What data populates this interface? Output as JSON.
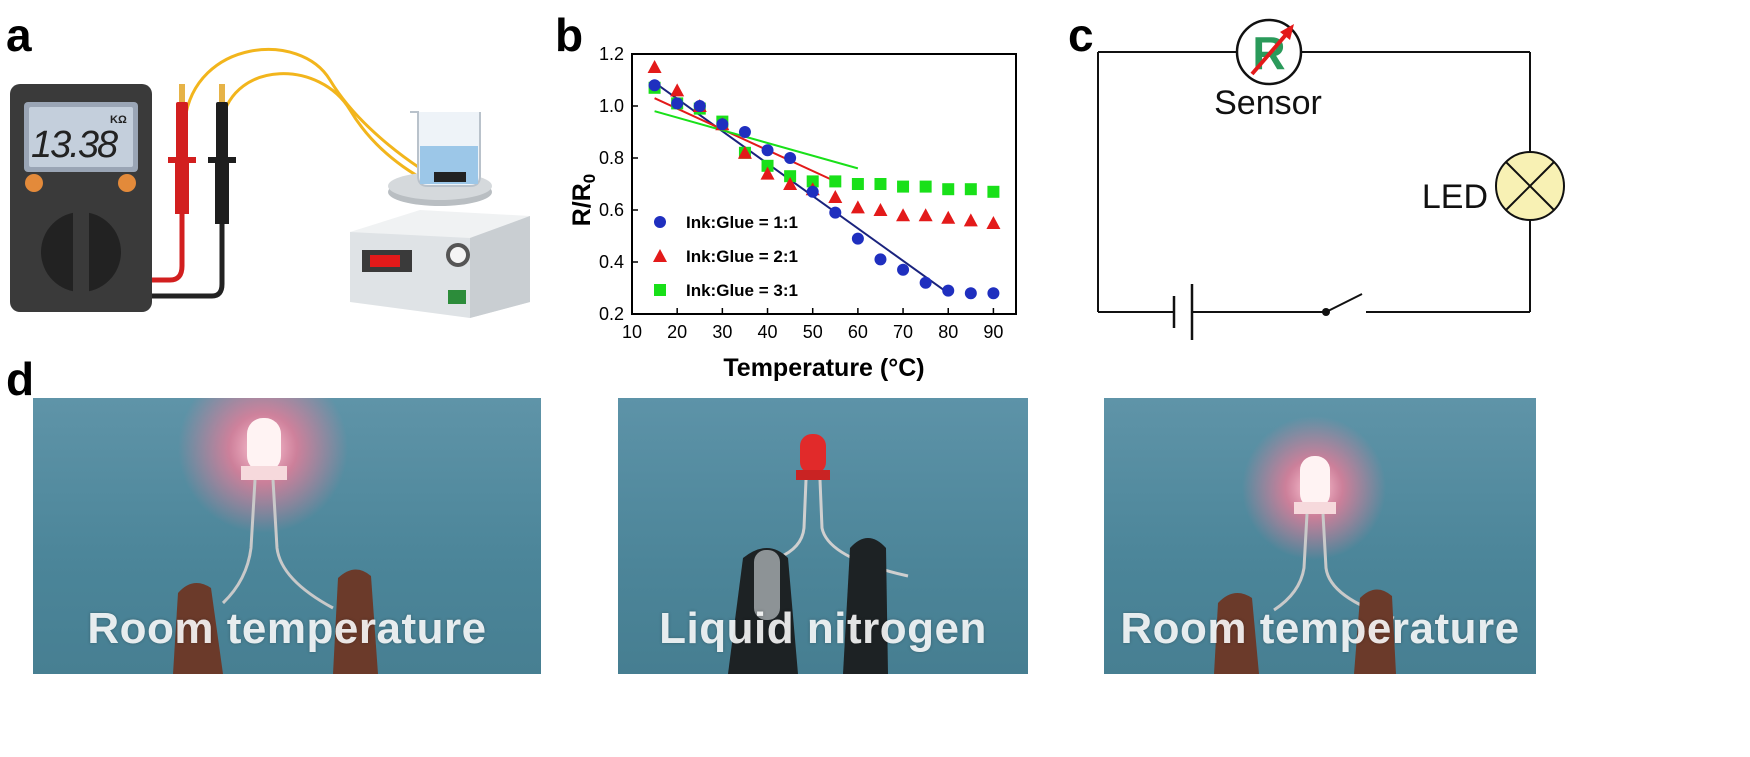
{
  "panels": {
    "a": {
      "letter": "a",
      "multimeter_display": "13.38",
      "unit": "KΩ"
    },
    "b": {
      "letter": "b"
    },
    "c": {
      "letter": "c",
      "sensor_label": "Sensor",
      "sensor_symbol": "R",
      "led_label": "LED"
    },
    "d": {
      "letter": "d",
      "photos": [
        {
          "caption": "Room temperature",
          "led_state": "on"
        },
        {
          "caption": "Liquid nitrogen",
          "led_state": "off"
        },
        {
          "caption": "Room temperature",
          "led_state": "on"
        }
      ]
    }
  },
  "chart_data": {
    "type": "scatter",
    "xlabel": "Temperature (°C)",
    "ylabel": "R/R",
    "ylabel_subscript": "0",
    "xlim": [
      10,
      95
    ],
    "ylim": [
      0.2,
      1.2
    ],
    "xticks": [
      10,
      20,
      30,
      40,
      50,
      60,
      70,
      80,
      90
    ],
    "yticks": [
      0.2,
      0.4,
      0.6,
      0.8,
      1.0,
      1.2
    ],
    "ytick_labels": [
      "0.2",
      "0.4",
      "0.6",
      "0.8",
      "1.0",
      "1.2"
    ],
    "legend_position": "bottom-left",
    "series": [
      {
        "name": "Ink:Glue = 1:1",
        "marker": "circle",
        "color": "#1f2fbf",
        "x": [
          15,
          20,
          25,
          30,
          35,
          40,
          45,
          50,
          55,
          60,
          65,
          70,
          75,
          80,
          85,
          90
        ],
        "y": [
          1.08,
          1.01,
          1.0,
          0.93,
          0.9,
          0.83,
          0.8,
          0.67,
          0.59,
          0.49,
          0.41,
          0.37,
          0.32,
          0.29,
          0.28,
          0.28
        ],
        "fit": {
          "x": [
            15,
            80
          ],
          "y": [
            1.09,
            0.28
          ],
          "color": "#1a237e"
        }
      },
      {
        "name": "Ink:Glue = 2:1",
        "marker": "triangle",
        "color": "#e31a1a",
        "x": [
          15,
          20,
          25,
          30,
          35,
          40,
          45,
          50,
          55,
          60,
          65,
          70,
          75,
          80,
          85,
          90
        ],
        "y": [
          1.15,
          1.06,
          1.0,
          0.93,
          0.82,
          0.74,
          0.7,
          0.68,
          0.65,
          0.61,
          0.6,
          0.58,
          0.58,
          0.57,
          0.56,
          0.55
        ],
        "fit": {
          "x": [
            15,
            55
          ],
          "y": [
            1.03,
            0.71
          ],
          "color": "#e31a1a"
        }
      },
      {
        "name": "Ink:Glue = 3:1",
        "marker": "square",
        "color": "#19e019",
        "x": [
          15,
          20,
          25,
          30,
          35,
          40,
          45,
          50,
          55,
          60,
          65,
          70,
          75,
          80,
          85,
          90
        ],
        "y": [
          1.07,
          1.01,
          0.99,
          0.94,
          0.82,
          0.77,
          0.73,
          0.71,
          0.71,
          0.7,
          0.7,
          0.69,
          0.69,
          0.68,
          0.68,
          0.67
        ],
        "fit": {
          "x": [
            15,
            60
          ],
          "y": [
            0.98,
            0.76
          ],
          "color": "#19e019"
        }
      }
    ]
  }
}
